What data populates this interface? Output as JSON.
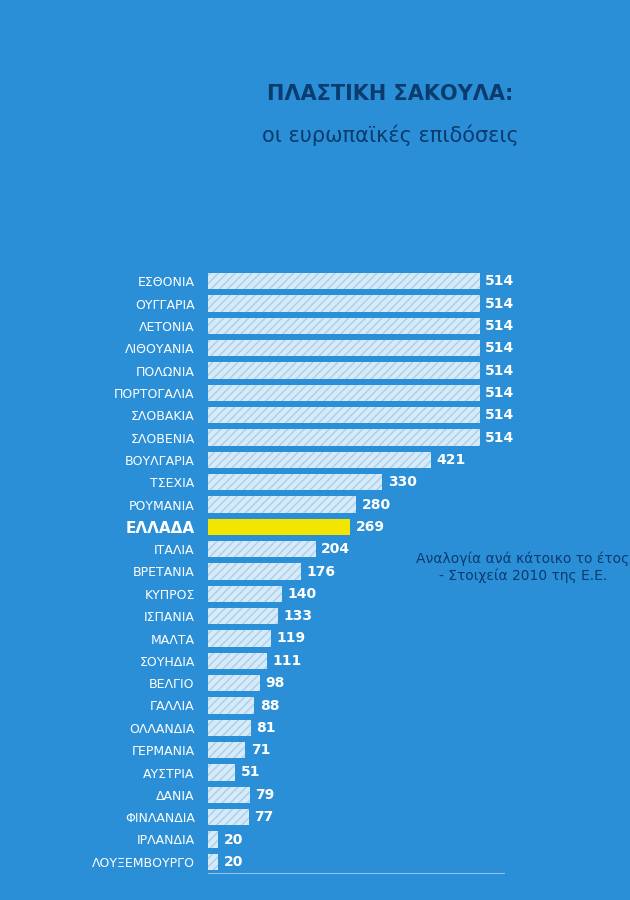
{
  "chart_data": {
    "type": "bar",
    "orientation": "horizontal",
    "title": "ΠΛΑΣΤΙΚΗ ΣΑΚΟΥΛΑ:",
    "subtitle": "οι ευρωπαϊκές επιδόσεις",
    "annotation": "Αναλογία ανά κάτοικο το έτος - Στοιχεία 2010 της Ε.Ε.",
    "categories": [
      "ΕΣΘΟΝΙΑ",
      "ΟΥΓΓΑΡΙΑ",
      "ΛΕΤΟΝΙΑ",
      "ΛΙΘΟΥΑΝΙΑ",
      "ΠΟΛΩΝΙΑ",
      "ΠΟΡΤΟΓΑΛΙΑ",
      "ΣΛΟΒΑΚΙΑ",
      "ΣΛΟΒΕΝΙΑ",
      "ΒΟΥΛΓΑΡΙΑ",
      "ΤΣΕΧΙΑ",
      "ΡΟΥΜΑΝΙΑ",
      "ΕΛΛΑΔΑ",
      "ΙΤΑΛΙΑ",
      "ΒΡΕΤΑΝΙΑ",
      "ΚΥΠΡΟΣ",
      "ΙΣΠΑΝΙΑ",
      "ΜΑΛΤΑ",
      "ΣΟΥΗΔΙΑ",
      "ΒΕΛΓΙΟ",
      "ΓΑΛΛΙΑ",
      "ΟΛΛΑΝΔΙΑ",
      "ΓΕΡΜΑΝΙΑ",
      "ΑΥΣΤΡΙΑ",
      "ΔΑΝΙΑ",
      "ΦΙΝΛΑΝΔΙΑ",
      "ΙΡΛΑΝΔΙΑ",
      "ΛΟΥΞΕΜΒΟΥΡΓΟ"
    ],
    "values": [
      514,
      514,
      514,
      514,
      514,
      514,
      514,
      514,
      421,
      330,
      280,
      269,
      204,
      176,
      140,
      133,
      119,
      111,
      98,
      88,
      81,
      71,
      51,
      79,
      77,
      20,
      20
    ],
    "colors": [
      "#d6eaf8",
      "#d6eaf8",
      "#d6eaf8",
      "#d6eaf8",
      "#d6eaf8",
      "#d6eaf8",
      "#d6eaf8",
      "#d6eaf8",
      "#d6eaf8",
      "#d6eaf8",
      "#d6eaf8",
      "#f2e600",
      "#d6eaf8",
      "#d6eaf8",
      "#d6eaf8",
      "#d6eaf8",
      "#d6eaf8",
      "#d6eaf8",
      "#d6eaf8",
      "#d6eaf8",
      "#d6eaf8",
      "#d6eaf8",
      "#d6eaf8",
      "#d6eaf8",
      "#d6eaf8",
      "#d6eaf8",
      "#d6eaf8"
    ],
    "xlim": [
      0,
      560
    ],
    "data_labels": true,
    "tick_labels": "y",
    "grid": false
  }
}
